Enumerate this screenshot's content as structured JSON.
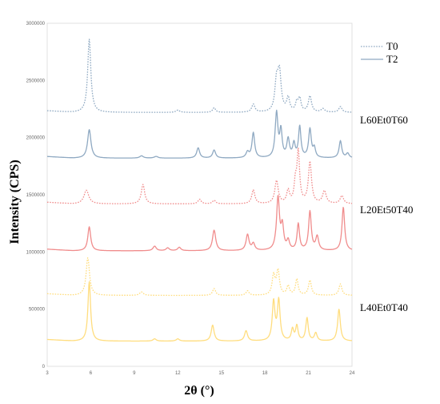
{
  "chart_data": {
    "type": "line",
    "title": "",
    "xlabel": "2θ (°)",
    "ylabel": "Intensity (CPS)",
    "xlim": [
      3,
      24
    ],
    "ylim": [
      0,
      3000000
    ],
    "xticks": [
      "3",
      "6",
      "9",
      "12",
      "15",
      "18",
      "21",
      "24"
    ],
    "yticks": [
      "0",
      "500000",
      "1000000",
      "1500000",
      "2000000",
      "2500000",
      "3000000"
    ],
    "legend": {
      "position": "top-right",
      "entries": [
        {
          "label": "T0",
          "style": "dotted"
        },
        {
          "label": "T2",
          "style": "solid"
        }
      ]
    },
    "samples": [
      {
        "label": "L60Et0T60",
        "color": "#8FA9C2",
        "series": [
          {
            "name": "T0",
            "style": "dotted",
            "baseline": 2220000,
            "peaks": [
              {
                "x": 5.9,
                "h": 640000,
                "w": 0.13
              },
              {
                "x": 12.0,
                "h": 20000,
                "w": 0.15
              },
              {
                "x": 14.5,
                "h": 40000,
                "w": 0.12
              },
              {
                "x": 17.2,
                "h": 70000,
                "w": 0.13
              },
              {
                "x": 18.8,
                "h": 250000,
                "w": 0.13
              },
              {
                "x": 19.0,
                "h": 330000,
                "w": 0.14
              },
              {
                "x": 19.6,
                "h": 120000,
                "w": 0.12
              },
              {
                "x": 20.2,
                "h": 80000,
                "w": 0.11
              },
              {
                "x": 20.4,
                "h": 110000,
                "w": 0.11
              },
              {
                "x": 21.1,
                "h": 140000,
                "w": 0.13
              },
              {
                "x": 22.0,
                "h": 30000,
                "w": 0.15
              },
              {
                "x": 23.2,
                "h": 50000,
                "w": 0.13
              }
            ]
          },
          {
            "name": "T2",
            "style": "solid",
            "baseline": 1820000,
            "peaks": [
              {
                "x": 5.9,
                "h": 250000,
                "w": 0.14
              },
              {
                "x": 9.5,
                "h": 20000,
                "w": 0.15
              },
              {
                "x": 10.5,
                "h": 15000,
                "w": 0.15
              },
              {
                "x": 13.4,
                "h": 90000,
                "w": 0.12
              },
              {
                "x": 14.5,
                "h": 70000,
                "w": 0.12
              },
              {
                "x": 16.8,
                "h": 50000,
                "w": 0.12
              },
              {
                "x": 17.2,
                "h": 220000,
                "w": 0.11
              },
              {
                "x": 18.8,
                "h": 390000,
                "w": 0.11
              },
              {
                "x": 19.1,
                "h": 230000,
                "w": 0.1
              },
              {
                "x": 19.6,
                "h": 160000,
                "w": 0.11
              },
              {
                "x": 20.0,
                "h": 120000,
                "w": 0.1
              },
              {
                "x": 20.4,
                "h": 270000,
                "w": 0.1
              },
              {
                "x": 21.1,
                "h": 250000,
                "w": 0.11
              },
              {
                "x": 21.4,
                "h": 80000,
                "w": 0.1
              },
              {
                "x": 23.2,
                "h": 150000,
                "w": 0.11
              },
              {
                "x": 23.7,
                "h": 40000,
                "w": 0.12
              }
            ]
          }
        ]
      },
      {
        "label": "L20Et50T40",
        "color": "#F08C8C",
        "series": [
          {
            "name": "T0",
            "style": "dotted",
            "baseline": 1420000,
            "peaks": [
              {
                "x": 5.7,
                "h": 120000,
                "w": 0.2
              },
              {
                "x": 9.6,
                "h": 170000,
                "w": 0.14
              },
              {
                "x": 13.5,
                "h": 40000,
                "w": 0.13
              },
              {
                "x": 14.5,
                "h": 30000,
                "w": 0.13
              },
              {
                "x": 17.2,
                "h": 120000,
                "w": 0.13
              },
              {
                "x": 18.8,
                "h": 200000,
                "w": 0.14
              },
              {
                "x": 19.6,
                "h": 110000,
                "w": 0.12
              },
              {
                "x": 20.1,
                "h": 160000,
                "w": 0.1
              },
              {
                "x": 20.3,
                "h": 440000,
                "w": 0.11
              },
              {
                "x": 21.1,
                "h": 360000,
                "w": 0.13
              },
              {
                "x": 22.1,
                "h": 110000,
                "w": 0.15
              },
              {
                "x": 23.3,
                "h": 70000,
                "w": 0.14
              }
            ]
          },
          {
            "name": "T2",
            "style": "solid",
            "baseline": 1010000,
            "peaks": [
              {
                "x": 5.9,
                "h": 210000,
                "w": 0.12
              },
              {
                "x": 10.4,
                "h": 40000,
                "w": 0.13
              },
              {
                "x": 11.3,
                "h": 25000,
                "w": 0.13
              },
              {
                "x": 12.1,
                "h": 30000,
                "w": 0.13
              },
              {
                "x": 14.5,
                "h": 180000,
                "w": 0.13
              },
              {
                "x": 16.8,
                "h": 140000,
                "w": 0.12
              },
              {
                "x": 17.2,
                "h": 60000,
                "w": 0.12
              },
              {
                "x": 18.9,
                "h": 460000,
                "w": 0.12
              },
              {
                "x": 19.2,
                "h": 200000,
                "w": 0.11
              },
              {
                "x": 19.6,
                "h": 80000,
                "w": 0.11
              },
              {
                "x": 20.3,
                "h": 230000,
                "w": 0.1
              },
              {
                "x": 21.1,
                "h": 340000,
                "w": 0.11
              },
              {
                "x": 21.6,
                "h": 120000,
                "w": 0.12
              },
              {
                "x": 23.4,
                "h": 380000,
                "w": 0.11
              }
            ]
          }
        ]
      },
      {
        "label": "L40Et0T40",
        "color": "#FFDD7E",
        "series": [
          {
            "name": "T0",
            "style": "dotted",
            "baseline": 620000,
            "peaks": [
              {
                "x": 5.8,
                "h": 330000,
                "w": 0.14
              },
              {
                "x": 9.5,
                "h": 30000,
                "w": 0.15
              },
              {
                "x": 14.5,
                "h": 60000,
                "w": 0.12
              },
              {
                "x": 16.8,
                "h": 40000,
                "w": 0.12
              },
              {
                "x": 18.6,
                "h": 170000,
                "w": 0.12
              },
              {
                "x": 18.9,
                "h": 210000,
                "w": 0.12
              },
              {
                "x": 19.6,
                "h": 80000,
                "w": 0.11
              },
              {
                "x": 20.2,
                "h": 140000,
                "w": 0.11
              },
              {
                "x": 21.1,
                "h": 130000,
                "w": 0.12
              },
              {
                "x": 23.2,
                "h": 100000,
                "w": 0.12
              }
            ]
          },
          {
            "name": "T2",
            "style": "solid",
            "baseline": 220000,
            "peaks": [
              {
                "x": 5.9,
                "h": 520000,
                "w": 0.11
              },
              {
                "x": 10.4,
                "h": 20000,
                "w": 0.13
              },
              {
                "x": 12.0,
                "h": 20000,
                "w": 0.13
              },
              {
                "x": 14.4,
                "h": 140000,
                "w": 0.12
              },
              {
                "x": 16.7,
                "h": 90000,
                "w": 0.12
              },
              {
                "x": 18.6,
                "h": 340000,
                "w": 0.11
              },
              {
                "x": 18.95,
                "h": 350000,
                "w": 0.11
              },
              {
                "x": 19.9,
                "h": 100000,
                "w": 0.1
              },
              {
                "x": 20.2,
                "h": 130000,
                "w": 0.1
              },
              {
                "x": 20.9,
                "h": 200000,
                "w": 0.1
              },
              {
                "x": 21.5,
                "h": 70000,
                "w": 0.11
              },
              {
                "x": 23.1,
                "h": 280000,
                "w": 0.11
              }
            ]
          }
        ]
      }
    ]
  }
}
